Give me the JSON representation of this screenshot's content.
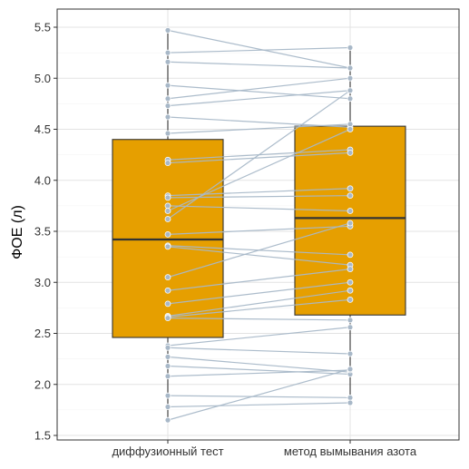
{
  "chart_data": {
    "type": "box",
    "title": "",
    "xlabel": "",
    "ylabel": "ФОЕ (л)",
    "ylim": [
      1.5,
      5.65
    ],
    "yticks": [
      1.5,
      2.0,
      2.5,
      3.0,
      3.5,
      4.0,
      4.5,
      5.0,
      5.5
    ],
    "ytick_labels": [
      "1.5",
      "2.0",
      "2.5",
      "3.0",
      "3.5",
      "4.0",
      "4.5",
      "5.0",
      "5.5"
    ],
    "categories": [
      "диффузионный тест",
      "метод вымывания азота"
    ],
    "grid": true,
    "box_fill": "#E69F00",
    "point_color": "#A8B8C8",
    "line_color": "#A8B8C8",
    "boxes": [
      {
        "category": "диффузионный тест",
        "whisker_low": 1.65,
        "q1": 2.46,
        "median": 3.42,
        "q3": 4.4,
        "whisker_high": 5.47
      },
      {
        "category": "метод вымывания азота",
        "whisker_low": 1.82,
        "q1": 2.68,
        "median": 3.63,
        "q3": 4.53,
        "whisker_high": 5.3
      }
    ],
    "pairs": [
      [
        5.47,
        5.1
      ],
      [
        5.25,
        5.3
      ],
      [
        5.16,
        5.1
      ],
      [
        4.93,
        4.8
      ],
      [
        4.8,
        5.0
      ],
      [
        4.73,
        4.88
      ],
      [
        4.62,
        4.52
      ],
      [
        4.46,
        4.55
      ],
      [
        4.2,
        4.3
      ],
      [
        4.17,
        4.27
      ],
      [
        3.85,
        3.92
      ],
      [
        3.83,
        3.85
      ],
      [
        3.75,
        3.7
      ],
      [
        3.7,
        4.5
      ],
      [
        3.62,
        4.88
      ],
      [
        3.47,
        3.55
      ],
      [
        3.36,
        3.27
      ],
      [
        3.35,
        3.17
      ],
      [
        3.05,
        3.58
      ],
      [
        2.92,
        3.13
      ],
      [
        2.79,
        3.0
      ],
      [
        2.67,
        2.92
      ],
      [
        2.66,
        2.83
      ],
      [
        2.65,
        2.63
      ],
      [
        2.38,
        2.56
      ],
      [
        2.36,
        2.3
      ],
      [
        2.27,
        2.12
      ],
      [
        2.18,
        2.1
      ],
      [
        2.08,
        2.14
      ],
      [
        1.89,
        1.87
      ],
      [
        1.78,
        1.82
      ],
      [
        1.65,
        2.15
      ]
    ]
  }
}
